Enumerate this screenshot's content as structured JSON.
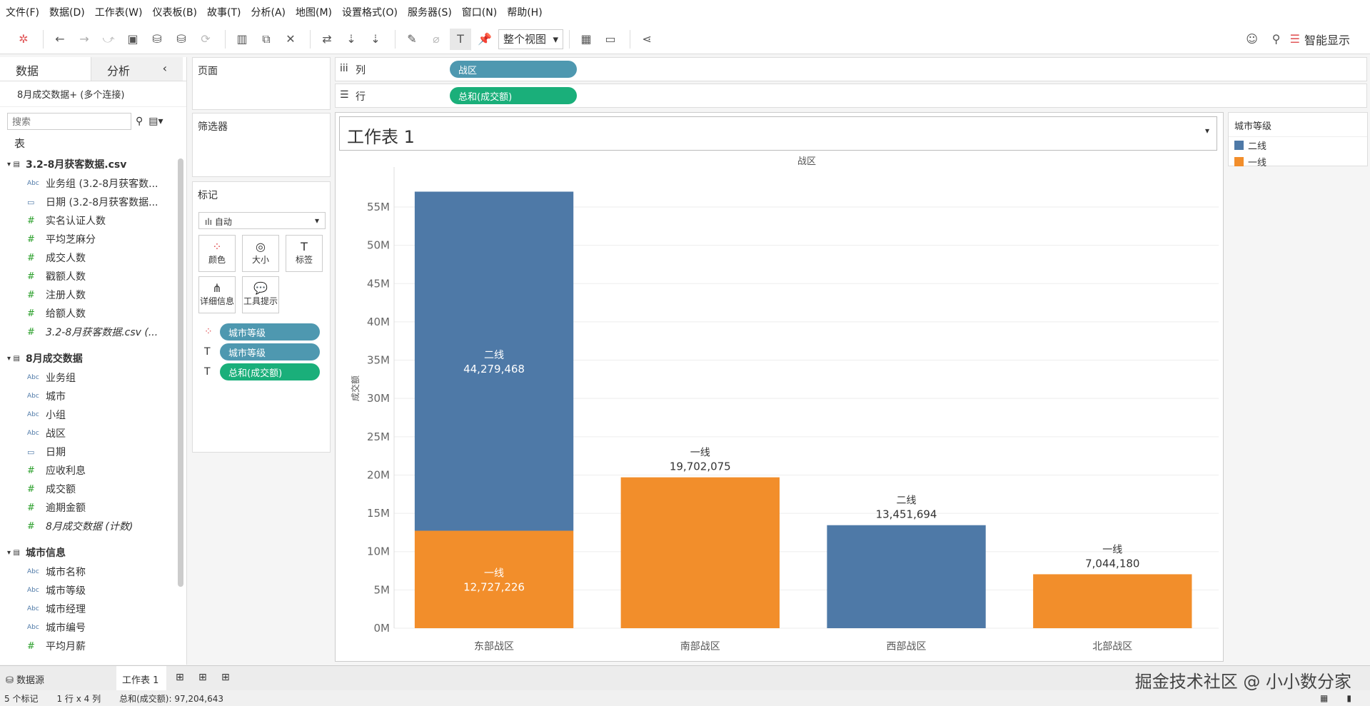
{
  "menu": [
    "文件(F)",
    "数据(D)",
    "工作表(W)",
    "仪表板(B)",
    "故事(T)",
    "分析(A)",
    "地图(M)",
    "设置格式(O)",
    "服务器(S)",
    "窗口(N)",
    "帮助(H)"
  ],
  "toolbar": {
    "view_mode": "整个视图",
    "smart_show": "智能显示"
  },
  "left": {
    "tab_data": "数据",
    "tab_analysis": "分析",
    "connection": "8月成交数据+ (多个连接)",
    "search_placeholder": "搜索",
    "tables_label": "表",
    "groups": [
      {
        "name": "3.2-8月获客数据.csv",
        "fields": [
          {
            "t": "Abc",
            "n": "业务组 (3.2-8月获客数..."
          },
          {
            "t": "date",
            "n": "日期 (3.2-8月获客数据..."
          },
          {
            "t": "#",
            "n": "实名认证人数"
          },
          {
            "t": "#",
            "n": "平均芝麻分"
          },
          {
            "t": "#",
            "n": "成交人数"
          },
          {
            "t": "#",
            "n": "戳额人数"
          },
          {
            "t": "#",
            "n": "注册人数"
          },
          {
            "t": "#",
            "n": "给额人数"
          },
          {
            "t": "#",
            "n": "3.2-8月获客数据.csv (..."
          }
        ]
      },
      {
        "name": "8月成交数据",
        "fields": [
          {
            "t": "Abc",
            "n": "业务组"
          },
          {
            "t": "Abc",
            "n": "城市"
          },
          {
            "t": "Abc",
            "n": "小组"
          },
          {
            "t": "Abc",
            "n": "战区"
          },
          {
            "t": "date",
            "n": "日期"
          },
          {
            "t": "#",
            "n": "应收利息"
          },
          {
            "t": "#",
            "n": "成交额"
          },
          {
            "t": "#",
            "n": "逾期金额"
          },
          {
            "t": "#",
            "n": "8月成交数据 (计数)"
          }
        ]
      },
      {
        "name": "城市信息",
        "fields": [
          {
            "t": "Abc",
            "n": "城市名称"
          },
          {
            "t": "Abc",
            "n": "城市等级"
          },
          {
            "t": "Abc",
            "n": "城市经理"
          },
          {
            "t": "Abc",
            "n": "城市编号"
          },
          {
            "t": "#",
            "n": "平均月薪"
          }
        ]
      }
    ]
  },
  "shelves": {
    "pages": "页面",
    "filters": "筛选器",
    "marks": "标记",
    "mark_type": "自动",
    "mark_buttons": [
      "颜色",
      "大小",
      "标签",
      "详细信息",
      "工具提示"
    ],
    "mark_pills": [
      "城市等级",
      "城市等级",
      "总和(成交额)"
    ],
    "columns_label": "列",
    "rows_label": "行",
    "columns_pill": "战区",
    "rows_pill": "总和(成交额)"
  },
  "worksheet": {
    "title": "工作表 1"
  },
  "legend": {
    "title": "城市等级",
    "items": [
      {
        "label": "二线",
        "color": "#4e79a7"
      },
      {
        "label": "一线",
        "color": "#f28e2b"
      }
    ]
  },
  "chart_data": {
    "type": "bar",
    "stacked": true,
    "title": "战区",
    "xlabel": "",
    "ylabel": "成交额",
    "ylim": [
      0,
      57000000
    ],
    "yticks": [
      "0M",
      "5M",
      "10M",
      "15M",
      "20M",
      "25M",
      "30M",
      "35M",
      "40M",
      "45M",
      "50M",
      "55M"
    ],
    "categories": [
      "东部战区",
      "南部战区",
      "西部战区",
      "北部战区"
    ],
    "series": [
      {
        "name": "一线",
        "color": "#f28e2b",
        "values": [
          12727226,
          19702075,
          0,
          7044180
        ],
        "labels": [
          "12,727,226",
          "19,702,075",
          "",
          "7,044,180"
        ]
      },
      {
        "name": "二线",
        "color": "#4e79a7",
        "values": [
          44279468,
          0,
          13451694,
          0
        ],
        "labels": [
          "44,279,468",
          "",
          "13,451,694",
          ""
        ]
      }
    ]
  },
  "bottom": {
    "datasource": "数据源",
    "sheet_tab": "工作表 1",
    "watermark": "掘金技术社区 @ 小小数分家"
  },
  "status": {
    "marks": "5 个标记",
    "dims": "1 行 x 4 列",
    "sum": "总和(成交额): 97,204,643"
  }
}
